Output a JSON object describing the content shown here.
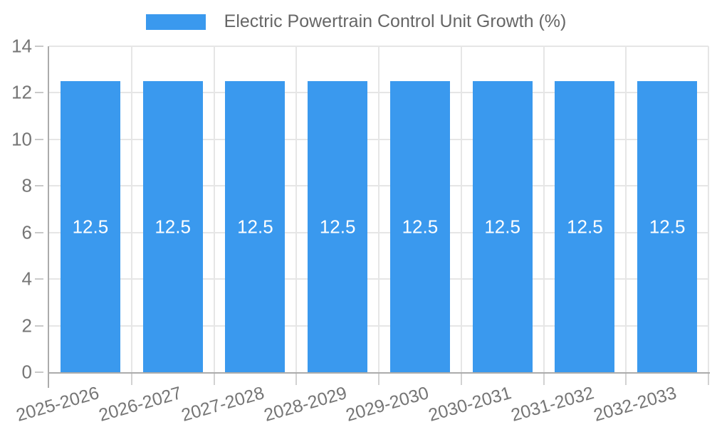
{
  "legend": {
    "label": "Electric Powertrain Control Unit Growth (%)"
  },
  "colors": {
    "bar": "#3A99EE",
    "grid": "#E6E6E6",
    "axis": "#ABABAB",
    "tick_mark": "#C9C9C9",
    "axis_label": "#757575",
    "legend_text": "#666666",
    "value_label": "#FFFFFF",
    "background": "#FFFFFF"
  },
  "chart_data": {
    "type": "bar",
    "title": "Electric Powertrain Control Unit Growth (%)",
    "categories": [
      "2025-2026",
      "2026-2027",
      "2027-2028",
      "2028-2029",
      "2029-2030",
      "2030-2031",
      "2031-2032",
      "2032-2033"
    ],
    "values": [
      12.5,
      12.5,
      12.5,
      12.5,
      12.5,
      12.5,
      12.5,
      12.5
    ],
    "value_labels": [
      "12.5",
      "12.5",
      "12.5",
      "12.5",
      "12.5",
      "12.5",
      "12.5",
      "12.5"
    ],
    "xlabel": "",
    "ylabel": "",
    "ylim": [
      0,
      14
    ],
    "y_ticks": [
      0,
      2,
      4,
      6,
      8,
      10,
      12,
      14
    ],
    "grid": true,
    "legend_position": "top",
    "series": [
      {
        "name": "Electric Powertrain Control Unit Growth (%)",
        "values": [
          12.5,
          12.5,
          12.5,
          12.5,
          12.5,
          12.5,
          12.5,
          12.5
        ]
      }
    ]
  }
}
